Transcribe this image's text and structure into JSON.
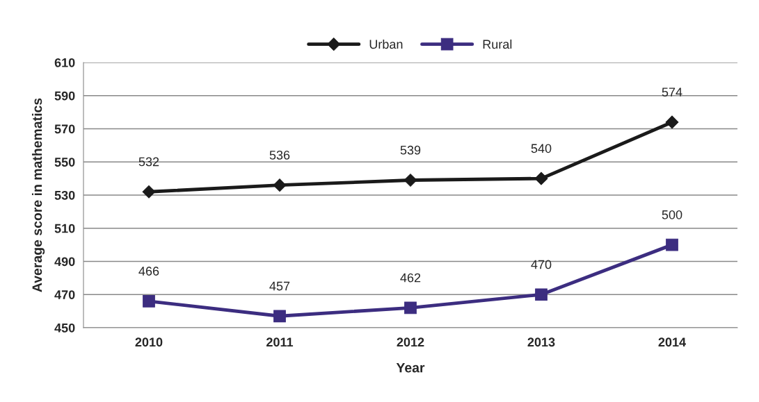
{
  "chart_data": {
    "type": "line",
    "xlabel": "Year",
    "ylabel": "Average score in mathematics",
    "categories": [
      "2010",
      "2011",
      "2012",
      "2013",
      "2014"
    ],
    "series": [
      {
        "name": "Urban",
        "color": "#1a1a1a",
        "marker": "diamond",
        "values": [
          532,
          536,
          539,
          540,
          574
        ]
      },
      {
        "name": "Rural",
        "color": "#3c2d80",
        "marker": "square",
        "values": [
          466,
          457,
          462,
          470,
          500
        ]
      }
    ],
    "ylim": [
      450,
      610
    ],
    "yticks": [
      450,
      470,
      490,
      510,
      530,
      550,
      570,
      590,
      610
    ],
    "grid": "y",
    "legend": "top",
    "data_labels": true,
    "line_style": "solid"
  }
}
